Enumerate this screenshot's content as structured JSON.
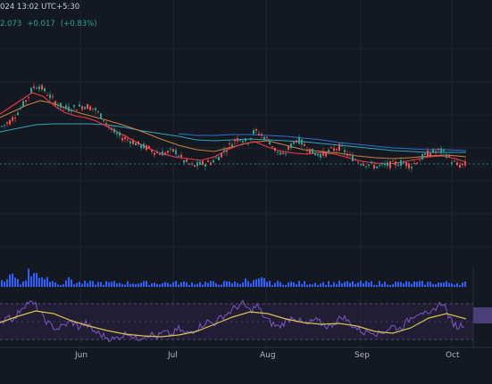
{
  "header": {
    "timestamp": "024 13:02 UTC+5:30",
    "price": "2.073",
    "change": "+0.017",
    "change_pct": "(+0.83%)"
  },
  "colors": {
    "background": "#141821",
    "grid": "#1f2430",
    "up": "#26a69a",
    "down": "#ef5350",
    "volume": "#2962ff",
    "ma_red": "#f23645",
    "ma_orange": "#c6803f",
    "ma_teal": "#2fa6b6",
    "ma_blue": "#2d6fd3",
    "rsi_band": "#2a2246",
    "rsi_line": "#7e57c2",
    "rsi_ma": "#d8c44a"
  },
  "icons": [],
  "chart_data": {
    "type": "candlestick",
    "x_axis_labels": [
      "Jun",
      "Jul",
      "Aug",
      "Sep",
      "Oct"
    ],
    "price_trend": [
      [
        0,
        2.55
      ],
      [
        10,
        2.62
      ],
      [
        20,
        2.75
      ],
      [
        30,
        2.92
      ],
      [
        36,
        3.05
      ],
      [
        42,
        3.08
      ],
      [
        50,
        3.0
      ],
      [
        58,
        2.9
      ],
      [
        66,
        2.82
      ],
      [
        75,
        2.78
      ],
      [
        85,
        2.8
      ],
      [
        95,
        2.82
      ],
      [
        105,
        2.78
      ],
      [
        115,
        2.65
      ],
      [
        125,
        2.5
      ],
      [
        135,
        2.42
      ],
      [
        145,
        2.38
      ],
      [
        155,
        2.32
      ],
      [
        165,
        2.28
      ],
      [
        175,
        2.22
      ],
      [
        185,
        2.22
      ],
      [
        195,
        2.25
      ],
      [
        205,
        2.12
      ],
      [
        215,
        2.05
      ],
      [
        225,
        2.08
      ],
      [
        235,
        2.1
      ],
      [
        245,
        2.18
      ],
      [
        255,
        2.3
      ],
      [
        262,
        2.38
      ],
      [
        268,
        2.42
      ],
      [
        276,
        2.35
      ],
      [
        284,
        2.5
      ],
      [
        292,
        2.45
      ],
      [
        300,
        2.38
      ],
      [
        308,
        2.25
      ],
      [
        316,
        2.18
      ],
      [
        324,
        2.3
      ],
      [
        332,
        2.4
      ],
      [
        340,
        2.32
      ],
      [
        350,
        2.22
      ],
      [
        360,
        2.2
      ],
      [
        370,
        2.25
      ],
      [
        380,
        2.3
      ],
      [
        390,
        2.18
      ],
      [
        400,
        2.12
      ],
      [
        410,
        2.08
      ],
      [
        420,
        2.05
      ],
      [
        430,
        2.06
      ],
      [
        440,
        2.08
      ],
      [
        450,
        2.1
      ],
      [
        460,
        2.06
      ],
      [
        470,
        2.15
      ],
      [
        480,
        2.22
      ],
      [
        490,
        2.25
      ],
      [
        498,
        2.22
      ],
      [
        505,
        2.12
      ],
      [
        512,
        2.06
      ],
      [
        520,
        2.07
      ]
    ],
    "rsi_trend": [
      [
        0,
        45
      ],
      [
        8,
        58
      ],
      [
        16,
        52
      ],
      [
        24,
        66
      ],
      [
        32,
        72
      ],
      [
        40,
        68
      ],
      [
        48,
        55
      ],
      [
        56,
        46
      ],
      [
        64,
        42
      ],
      [
        72,
        46
      ],
      [
        80,
        50
      ],
      [
        88,
        44
      ],
      [
        96,
        48
      ],
      [
        104,
        40
      ],
      [
        112,
        36
      ],
      [
        120,
        32
      ],
      [
        128,
        30
      ],
      [
        136,
        34
      ],
      [
        144,
        38
      ],
      [
        152,
        30
      ],
      [
        160,
        34
      ],
      [
        168,
        36
      ],
      [
        176,
        33
      ],
      [
        184,
        38
      ],
      [
        192,
        35
      ],
      [
        200,
        42
      ],
      [
        208,
        36
      ],
      [
        216,
        40
      ],
      [
        224,
        45
      ],
      [
        232,
        50
      ],
      [
        240,
        48
      ],
      [
        248,
        55
      ],
      [
        256,
        60
      ],
      [
        264,
        66
      ],
      [
        272,
        70
      ],
      [
        280,
        62
      ],
      [
        288,
        68
      ],
      [
        296,
        55
      ],
      [
        304,
        48
      ],
      [
        312,
        44
      ],
      [
        320,
        50
      ],
      [
        328,
        56
      ],
      [
        336,
        50
      ],
      [
        344,
        46
      ],
      [
        352,
        52
      ],
      [
        360,
        48
      ],
      [
        368,
        44
      ],
      [
        376,
        50
      ],
      [
        384,
        56
      ],
      [
        392,
        48
      ],
      [
        400,
        42
      ],
      [
        408,
        38
      ],
      [
        416,
        40
      ],
      [
        424,
        36
      ],
      [
        432,
        40
      ],
      [
        440,
        45
      ],
      [
        448,
        42
      ],
      [
        456,
        50
      ],
      [
        464,
        58
      ],
      [
        472,
        62
      ],
      [
        480,
        55
      ],
      [
        488,
        66
      ],
      [
        496,
        72
      ],
      [
        504,
        52
      ],
      [
        512,
        44
      ],
      [
        520,
        48
      ]
    ]
  }
}
